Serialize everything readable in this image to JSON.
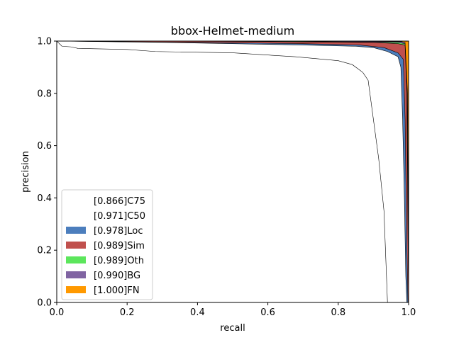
{
  "chart_data": {
    "type": "area",
    "title": "bbox-Helmet-medium",
    "xlabel": "recall",
    "ylabel": "precision",
    "xlim": [
      0,
      1
    ],
    "ylim": [
      0,
      1
    ],
    "xticks": [
      "0.0",
      "0.2",
      "0.4",
      "0.6",
      "0.8",
      "1.0"
    ],
    "yticks": [
      "0.0",
      "0.2",
      "0.4",
      "0.6",
      "0.8",
      "1.0"
    ],
    "grid": false,
    "legend_position": "lower-left",
    "series": [
      {
        "name": "[0.866]C75",
        "color": "#ffffff",
        "points": [
          [
            0,
            1.0
          ],
          [
            0.015,
            0.98
          ],
          [
            0.04,
            0.978
          ],
          [
            0.06,
            0.972
          ],
          [
            0.2,
            0.968
          ],
          [
            0.28,
            0.96
          ],
          [
            0.5,
            0.955
          ],
          [
            0.68,
            0.94
          ],
          [
            0.76,
            0.93
          ],
          [
            0.8,
            0.925
          ],
          [
            0.84,
            0.91
          ],
          [
            0.87,
            0.88
          ],
          [
            0.885,
            0.85
          ],
          [
            0.9,
            0.7
          ],
          [
            0.915,
            0.55
          ],
          [
            0.93,
            0.35
          ],
          [
            0.94,
            0.0
          ]
        ]
      },
      {
        "name": "[0.971]C50",
        "color": "#ffffff",
        "points": [
          [
            0,
            1.0
          ],
          [
            0.3,
            0.995
          ],
          [
            0.5,
            0.99
          ],
          [
            0.7,
            0.985
          ],
          [
            0.85,
            0.98
          ],
          [
            0.9,
            0.975
          ],
          [
            0.94,
            0.96
          ],
          [
            0.97,
            0.94
          ],
          [
            0.978,
            0.9
          ],
          [
            0.983,
            0.7
          ],
          [
            0.988,
            0.4
          ],
          [
            0.992,
            0.1
          ],
          [
            0.995,
            0.0
          ]
        ]
      },
      {
        "name": "[0.978]Loc",
        "color": "#4c7ebd",
        "points": [
          [
            0,
            1.0
          ],
          [
            0.4,
            0.995
          ],
          [
            0.7,
            0.99
          ],
          [
            0.86,
            0.985
          ],
          [
            0.93,
            0.975
          ],
          [
            0.97,
            0.955
          ],
          [
            0.985,
            0.93
          ],
          [
            0.99,
            0.7
          ],
          [
            0.994,
            0.3
          ],
          [
            0.998,
            0.0
          ]
        ]
      },
      {
        "name": "[0.989]Sim",
        "color": "#c0504d",
        "points": [
          [
            0,
            1.0
          ],
          [
            0.3,
            1.0
          ],
          [
            0.6,
            0.998
          ],
          [
            0.9,
            0.995
          ],
          [
            0.97,
            0.99
          ],
          [
            0.99,
            0.985
          ],
          [
            0.995,
            0.8
          ],
          [
            0.998,
            0.3
          ],
          [
            1.0,
            0.0
          ]
        ]
      },
      {
        "name": "[0.989]Oth",
        "color": "#5ce65c",
        "points": [
          [
            0,
            1.0
          ],
          [
            0.6,
            1.0
          ],
          [
            0.97,
            0.995
          ],
          [
            0.99,
            0.99
          ],
          [
            0.996,
            0.8
          ],
          [
            0.999,
            0.3
          ],
          [
            1.0,
            0.0
          ]
        ]
      },
      {
        "name": "[0.990]BG",
        "color": "#8064a2",
        "points": [
          [
            0,
            1.0
          ],
          [
            0.7,
            1.0
          ],
          [
            0.98,
            0.998
          ],
          [
            0.99,
            0.995
          ],
          [
            0.997,
            0.8
          ],
          [
            1.0,
            0.0
          ]
        ]
      },
      {
        "name": "[1.000]FN",
        "color": "#ff9900",
        "points": [
          [
            0,
            1.0
          ],
          [
            0.99,
            1.0
          ],
          [
            1.0,
            1.0
          ],
          [
            1.0,
            0.0
          ]
        ]
      }
    ]
  }
}
